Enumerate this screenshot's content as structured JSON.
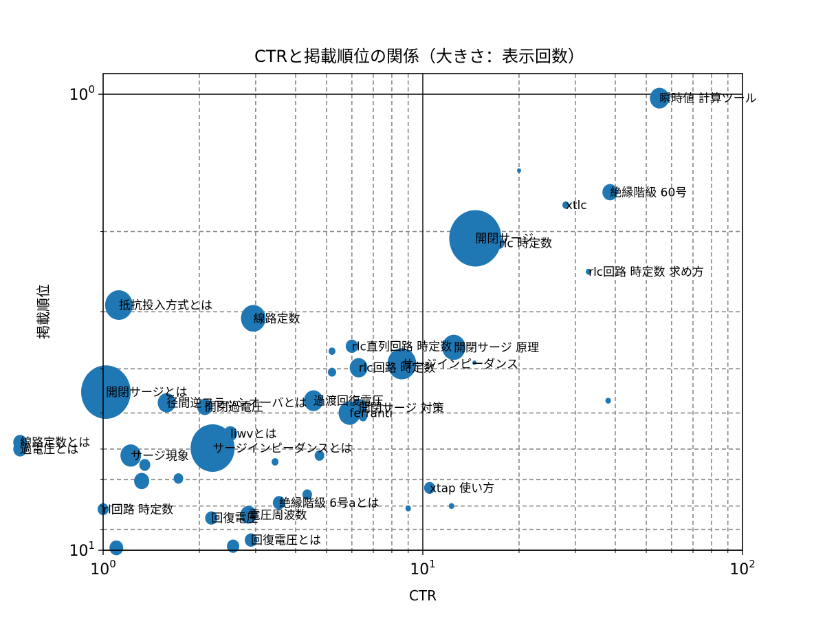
{
  "chart_data": {
    "type": "scatter",
    "title": "CTRと掲載順位の関係（大きさ：表示回数）",
    "xlabel": "CTR",
    "ylabel": "掲載順位",
    "xscale": "log",
    "yscale": "log",
    "yaxis_inverted": true,
    "xlim": [
      1,
      100
    ],
    "ylim": [
      10,
      1
    ],
    "x_ticks": [
      {
        "value": 1,
        "base": "10",
        "exp": "0"
      },
      {
        "value": 10,
        "base": "10",
        "exp": "1"
      },
      {
        "value": 100,
        "base": "10",
        "exp": "2"
      }
    ],
    "y_ticks": [
      {
        "value": 1,
        "base": "10",
        "exp": "0"
      },
      {
        "value": 10,
        "base": "10",
        "exp": "1"
      }
    ],
    "grid": {
      "on": true,
      "style": "dashed",
      "which": "both",
      "color": "#888888"
    },
    "marker_color": "#1f77b4",
    "size_encoding": "表示回数",
    "points": [
      {
        "label": "瞬時値 計算ツール",
        "ctr": 55.0,
        "position": 1.02,
        "size": 14
      },
      {
        "label": "",
        "ctr": 20.0,
        "position": 1.47,
        "size": 3
      },
      {
        "label": "絶縁階級 60号",
        "ctr": 38.5,
        "position": 1.64,
        "size": 11
      },
      {
        "label": "xtlc",
        "ctr": 28.0,
        "position": 1.75,
        "size": 5
      },
      {
        "label": "開閉サージ",
        "ctr": 14.6,
        "position": 2.07,
        "size": 38
      },
      {
        "label": "rlc 時定数",
        "ctr": 17.3,
        "position": 2.12,
        "size": 8
      },
      {
        "label": "rlc回路 時定数 求め方",
        "ctr": 33.0,
        "position": 2.45,
        "size": 4
      },
      {
        "label": "抵抗投入方式とは",
        "ctr": 1.12,
        "position": 2.9,
        "size": 20
      },
      {
        "label": "線路定数",
        "ctr": 2.95,
        "position": 3.1,
        "size": 18
      },
      {
        "label": "rlc直列回路 時定数",
        "ctr": 6.0,
        "position": 3.57,
        "size": 9
      },
      {
        "label": "",
        "ctr": 5.2,
        "position": 3.66,
        "size": 5
      },
      {
        "label": "開閉サージ 原理",
        "ctr": 12.5,
        "position": 3.59,
        "size": 17
      },
      {
        "label": "サージインピーダンス",
        "ctr": 8.6,
        "position": 3.9,
        "size": 21
      },
      {
        "label": "rlc回路 時定数",
        "ctr": 6.3,
        "position": 3.98,
        "size": 13
      },
      {
        "label": "",
        "ctr": 5.2,
        "position": 4.07,
        "size": 6
      },
      {
        "label": "",
        "ctr": 14.5,
        "position": 3.88,
        "size": 3
      },
      {
        "label": "開閉サージとは",
        "ctr": 1.02,
        "position": 4.5,
        "size": 36
      },
      {
        "label": "径間逆フラッシオーバとは",
        "ctr": 1.58,
        "position": 4.75,
        "size": 13
      },
      {
        "label": "開閉過電圧",
        "ctr": 2.08,
        "position": 4.85,
        "size": 11
      },
      {
        "label": "過渡回復電圧",
        "ctr": 4.55,
        "position": 4.7,
        "size": 14
      },
      {
        "label": "ferranti",
        "ctr": 5.9,
        "position": 5.0,
        "size": 16
      },
      {
        "label": "開閉サージ 対策",
        "ctr": 6.3,
        "position": 4.87,
        "size": 12
      },
      {
        "label": "",
        "ctr": 6.5,
        "position": 5.1,
        "size": 6
      },
      {
        "label": "",
        "ctr": 38.0,
        "position": 4.7,
        "size": 4
      },
      {
        "label": "liwvとは",
        "ctr": 2.5,
        "position": 5.55,
        "size": 10
      },
      {
        "label": "サージインピーダンスとは",
        "ctr": 2.2,
        "position": 5.97,
        "size": 32
      },
      {
        "label": "線路定数とは",
        "ctr": 0.55,
        "position": 5.8,
        "size": 10
      },
      {
        "label": "過電圧とは",
        "ctr": 0.55,
        "position": 6.0,
        "size": 10
      },
      {
        "label": "サージ現象",
        "ctr": 1.22,
        "position": 6.2,
        "size": 15
      },
      {
        "label": "",
        "ctr": 1.35,
        "position": 6.5,
        "size": 8
      },
      {
        "label": "",
        "ctr": 3.45,
        "position": 6.4,
        "size": 5
      },
      {
        "label": "",
        "ctr": 4.75,
        "position": 6.2,
        "size": 7
      },
      {
        "label": "",
        "ctr": 1.32,
        "position": 7.05,
        "size": 11
      },
      {
        "label": "",
        "ctr": 1.72,
        "position": 6.96,
        "size": 7
      },
      {
        "label": "絶縁階級 6号aとは",
        "ctr": 3.55,
        "position": 7.87,
        "size": 9
      },
      {
        "label": "",
        "ctr": 4.35,
        "position": 7.55,
        "size": 7
      },
      {
        "label": "xtap 使い方",
        "ctr": 10.5,
        "position": 7.3,
        "size": 8
      },
      {
        "label": "",
        "ctr": 9.0,
        "position": 8.1,
        "size": 4
      },
      {
        "label": "",
        "ctr": 12.3,
        "position": 8.0,
        "size": 4
      },
      {
        "label": "rl回路 時定数",
        "ctr": 1.0,
        "position": 8.13,
        "size": 8
      },
      {
        "label": "回復電圧",
        "ctr": 2.18,
        "position": 8.5,
        "size": 9
      },
      {
        "label": "電圧周波数",
        "ctr": 2.85,
        "position": 8.36,
        "size": 12
      },
      {
        "label": "回復電圧とは",
        "ctr": 2.9,
        "position": 9.5,
        "size": 9
      },
      {
        "label": "",
        "ctr": 2.55,
        "position": 9.8,
        "size": 9
      },
      {
        "label": "",
        "ctr": 1.1,
        "position": 9.88,
        "size": 10
      }
    ]
  }
}
